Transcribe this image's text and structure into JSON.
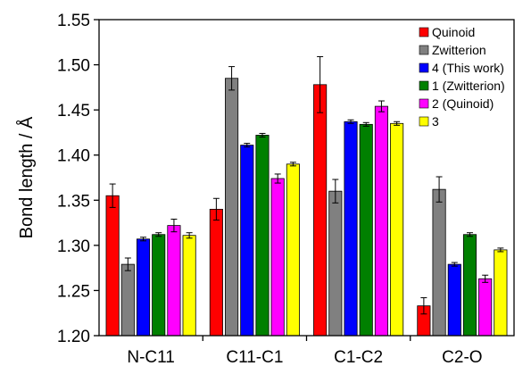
{
  "chart_data": {
    "type": "bar",
    "title": "",
    "xlabel": "",
    "ylabel": "Bond length / Å",
    "ylim": [
      1.2,
      1.55
    ],
    "yticks": [
      "1.20",
      "1.25",
      "1.30",
      "1.35",
      "1.40",
      "1.45",
      "1.50",
      "1.55"
    ],
    "grid": false,
    "legend_position": "top-right",
    "categories": [
      "N-C11",
      "C11-C1",
      "C1-C2",
      "C2-O"
    ],
    "series": [
      {
        "name": "Quinoid",
        "color": "#ff0000",
        "values": [
          1.355,
          1.34,
          1.478,
          1.233
        ],
        "errors": [
          0.013,
          0.012,
          0.031,
          0.009
        ]
      },
      {
        "name": "Zwitterion",
        "color": "#808080",
        "values": [
          1.279,
          1.485,
          1.36,
          1.362
        ],
        "errors": [
          0.007,
          0.013,
          0.013,
          0.014
        ]
      },
      {
        "name": "4 (This work)",
        "color": "#0000ff",
        "values": [
          1.307,
          1.411,
          1.437,
          1.279
        ],
        "errors": [
          0.002,
          0.002,
          0.002,
          0.002
        ]
      },
      {
        "name": "1 (Zwitterion)",
        "color": "#008000",
        "values": [
          1.312,
          1.422,
          1.434,
          1.312
        ],
        "errors": [
          0.002,
          0.002,
          0.002,
          0.002
        ]
      },
      {
        "name": "2 (Quinoid)",
        "color": "#ff00ff",
        "values": [
          1.322,
          1.374,
          1.454,
          1.263
        ],
        "errors": [
          0.007,
          0.005,
          0.006,
          0.004
        ]
      },
      {
        "name": "3",
        "color": "#ffff00",
        "values": [
          1.311,
          1.39,
          1.435,
          1.295
        ],
        "errors": [
          0.003,
          0.002,
          0.002,
          0.002
        ]
      }
    ]
  }
}
